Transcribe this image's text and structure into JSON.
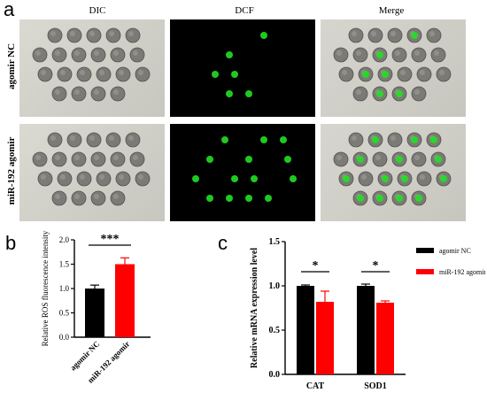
{
  "panel_a": {
    "letter": "a",
    "columns": [
      "DIC",
      "DCF",
      "Merge"
    ],
    "rows": [
      "agomir NC",
      "miR-192 agomir"
    ]
  },
  "chart_data": [
    {
      "type": "bar",
      "panel_letter": "b",
      "categories": [
        "agomir NC",
        "miR-192 agomir"
      ],
      "values": [
        1.0,
        1.5
      ],
      "errors": [
        0.07,
        0.13
      ],
      "colors": [
        "#000000",
        "#ff0000"
      ],
      "title": "",
      "xlabel": "",
      "ylabel": "Relative ROS fluorescence intensity",
      "ylim": [
        0,
        2.0
      ],
      "yticks": [
        0.0,
        0.5,
        1.0,
        1.5,
        2.0
      ],
      "ytick_labels": [
        "0.0",
        "0.5",
        "1.0",
        "1.5",
        "2.0"
      ],
      "significance": "***",
      "grid": false
    },
    {
      "type": "bar",
      "panel_letter": "c",
      "categories": [
        "CAT",
        "SOD1"
      ],
      "series": [
        {
          "name": "agomir NC",
          "values": [
            1.0,
            1.0
          ],
          "errors": [
            0.01,
            0.02
          ],
          "color": "#000000"
        },
        {
          "name": "miR-192 agomir",
          "values": [
            0.82,
            0.81
          ],
          "errors": [
            0.12,
            0.02
          ],
          "color": "#ff0000"
        }
      ],
      "title": "",
      "xlabel": "",
      "ylabel": "Relative mRNA expression level",
      "ylim": [
        0,
        1.5
      ],
      "yticks": [
        0.0,
        0.5,
        1.0,
        1.5
      ],
      "ytick_labels": [
        "0.0",
        "0.5",
        "1.0",
        "1.5"
      ],
      "significance": [
        "*",
        "*"
      ],
      "legend": "top-right",
      "grid": false
    }
  ]
}
